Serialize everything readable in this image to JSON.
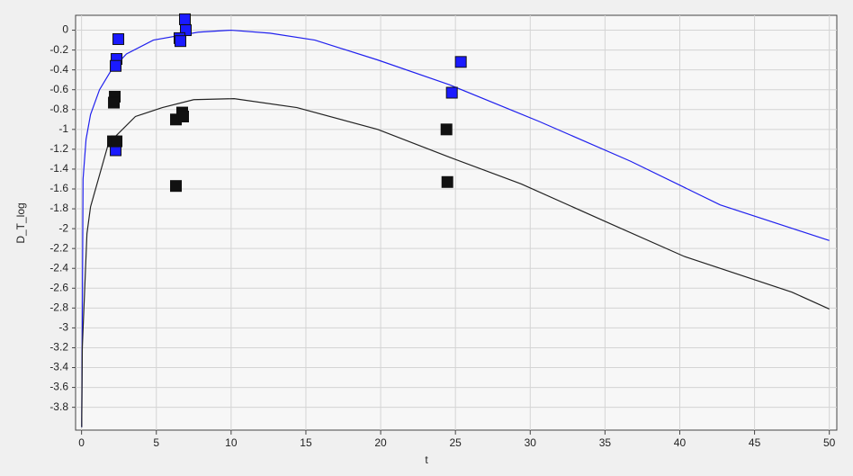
{
  "chart_data": {
    "type": "scatter",
    "x_label": "t",
    "y_label": "D_T_log",
    "xlim": [
      -0.4,
      50.5
    ],
    "ylim": [
      -4.03,
      0.15
    ],
    "xticks": [
      0,
      5,
      10,
      15,
      20,
      25,
      30,
      35,
      40,
      45,
      50
    ],
    "yticks": [
      0,
      -0.2,
      -0.4,
      -0.6,
      -0.8,
      -1,
      -1.2,
      -1.4,
      -1.6,
      -1.8,
      -2,
      -2.2,
      -2.4,
      -2.6,
      -2.8,
      -3,
      -3.2,
      -3.4,
      -3.6,
      -3.8
    ],
    "grid": true,
    "series": [
      {
        "mode": "line",
        "color": "#2020ee",
        "x": [
          0.01,
          0.1,
          0.3,
          0.6,
          1.2,
          2,
          3,
          4.8,
          7.8,
          10,
          12.6,
          15.6,
          19.8,
          24.6,
          30.6,
          36.7,
          42.7,
          50
        ],
        "values": [
          -4.0,
          -1.5,
          -1.1,
          -0.85,
          -0.6,
          -0.4,
          -0.24,
          -0.1,
          -0.02,
          0,
          -0.03,
          -0.1,
          -0.3,
          -0.55,
          -0.92,
          -1.32,
          -1.76,
          -2.12
        ]
      },
      {
        "mode": "line",
        "color": "#222222",
        "x": [
          0.01,
          0.05,
          0.36,
          0.6,
          1.8,
          3.6,
          5.4,
          7.5,
          10.2,
          14.4,
          19.8,
          24.6,
          29.4,
          35.5,
          40.3,
          47.5,
          50
        ],
        "values": [
          -4.0,
          -3.2,
          -2.05,
          -1.78,
          -1.14,
          -0.87,
          -0.78,
          -0.7,
          -0.69,
          -0.78,
          -1.0,
          -1.28,
          -1.55,
          -1.96,
          -2.28,
          -2.64,
          -2.81
        ]
      },
      {
        "mode": "markers",
        "color": "#1a1aff",
        "x": [
          2.46,
          2.34,
          2.28,
          2.28,
          6.91,
          6.97,
          6.55,
          6.61,
          24.76,
          25.36
        ],
        "values": [
          -0.09,
          -0.29,
          -0.36,
          -1.21,
          0.11,
          0.0,
          -0.08,
          -0.11,
          -0.63,
          -0.32
        ]
      },
      {
        "mode": "markers",
        "color": "#111111",
        "x": [
          2.22,
          2.16,
          2.1,
          2.34,
          6.31,
          6.73,
          6.79,
          6.31,
          24.4,
          24.46
        ],
        "values": [
          -0.67,
          -0.73,
          -1.12,
          -1.12,
          -0.9,
          -0.83,
          -0.87,
          -1.57,
          -1.0,
          -1.53
        ]
      }
    ]
  }
}
